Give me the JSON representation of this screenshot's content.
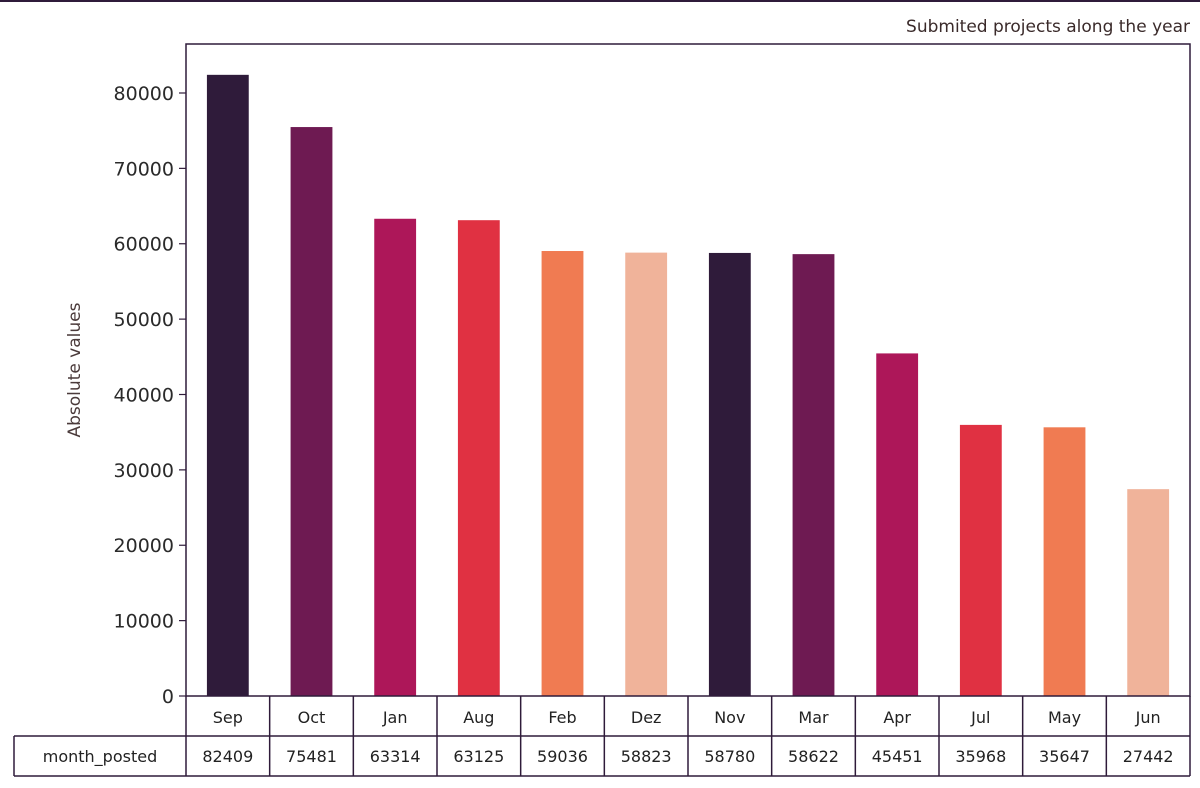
{
  "chart_data": {
    "type": "bar",
    "title": "Submited projects along the year",
    "xlabel": "",
    "ylabel": "Absolute values",
    "categories": [
      "Sep",
      "Oct",
      "Jan",
      "Aug",
      "Feb",
      "Dez",
      "Nov",
      "Mar",
      "Apr",
      "Jul",
      "May",
      "Jun"
    ],
    "series": [
      {
        "name": "month_posted",
        "values": [
          82409,
          75481,
          63314,
          63125,
          59036,
          58823,
          58780,
          58622,
          45451,
          35968,
          35647,
          27442
        ]
      }
    ],
    "ylim": [
      0,
      86500
    ],
    "yticks": [
      0,
      10000,
      20000,
      30000,
      40000,
      50000,
      60000,
      70000,
      80000
    ],
    "grid": false,
    "colors": [
      "#2f1b3a",
      "#6e1a52",
      "#ad1759",
      "#e03142",
      "#f07b52",
      "#f0b39a"
    ],
    "table": {
      "row_label": "month_posted",
      "cells": [
        "82409",
        "75481",
        "63314",
        "63125",
        "59036",
        "58823",
        "58780",
        "58622",
        "45451",
        "35968",
        "35647",
        "27442"
      ]
    }
  }
}
